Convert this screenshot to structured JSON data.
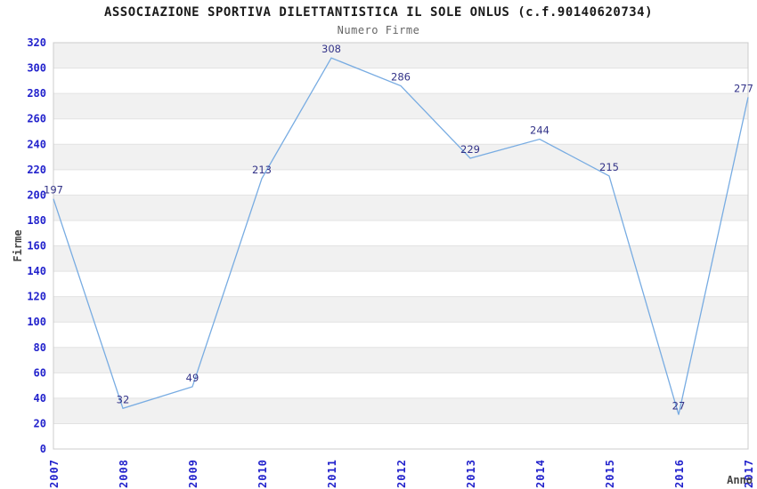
{
  "chart_data": {
    "type": "line",
    "title": "ASSOCIAZIONE SPORTIVA DILETTANTISTICA IL SOLE ONLUS (c.f.90140620734)",
    "subtitle": "Numero Firme",
    "categories": [
      "2007",
      "2008",
      "2009",
      "2010",
      "2011",
      "2012",
      "2013",
      "2014",
      "2015",
      "2016",
      "2017"
    ],
    "series": [
      {
        "name": "Numero Firme",
        "values": [
          197,
          32,
          49,
          213,
          308,
          286,
          229,
          244,
          215,
          27,
          277
        ]
      }
    ],
    "xlabel": "Anno",
    "ylabel": "Firme",
    "ylim": [
      0,
      320
    ],
    "ytick_step": 20,
    "grid": "horizontal",
    "legend": "none",
    "data_labels_visible": true
  },
  "colors": {
    "line": "#78ace2",
    "tick_label": "#2222cc",
    "data_label": "#333388",
    "band": "#f1f1f1",
    "band_alt": "#ffffff",
    "grid_line": "#e2e2e2",
    "plot_border": "#cccccc",
    "title": "#1a1a1a",
    "subtitle": "#666666",
    "axis_title": "#444444",
    "background": "#ffffff"
  }
}
